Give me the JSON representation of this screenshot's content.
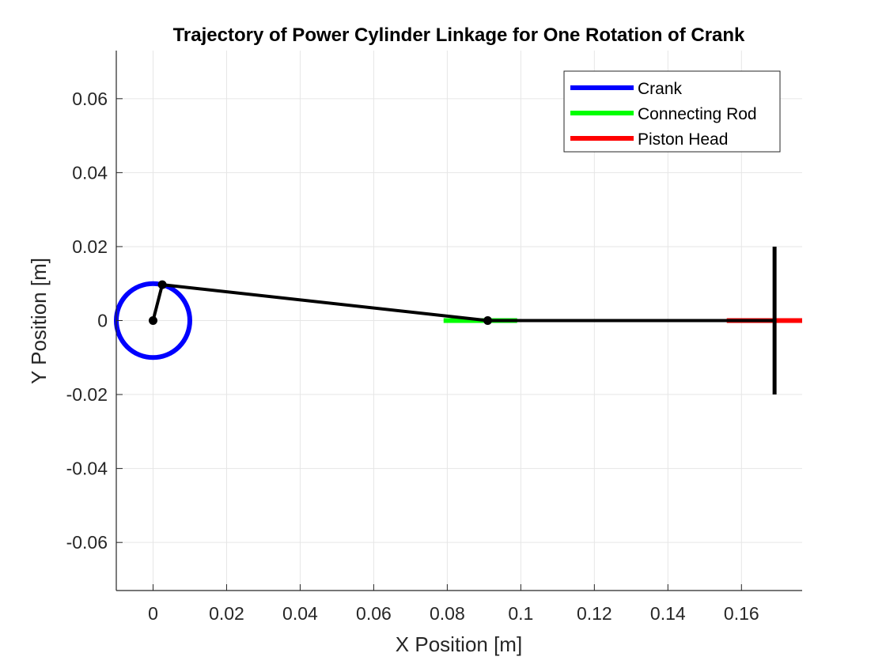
{
  "chart_data": {
    "type": "line",
    "title": "Trajectory of Power Cylinder Linkage for One Rotation of Crank",
    "xlabel": "X Position [m]",
    "ylabel": "Y Position [m]",
    "xlim": [
      -0.01,
      0.1765
    ],
    "ylim": [
      -0.073,
      0.073
    ],
    "xticks": [
      0,
      0.02,
      0.04,
      0.06,
      0.08,
      0.1,
      0.12,
      0.14,
      0.16
    ],
    "xtick_labels": [
      "0",
      "0.02",
      "0.04",
      "0.06",
      "0.08",
      "0.1",
      "0.12",
      "0.14",
      "0.16"
    ],
    "yticks": [
      -0.06,
      -0.04,
      -0.02,
      0,
      0.02,
      0.04,
      0.06
    ],
    "ytick_labels": [
      "-0.06",
      "-0.04",
      "-0.02",
      "0",
      "0.02",
      "0.04",
      "0.06"
    ],
    "grid": true,
    "legend_position": "top-right",
    "series": [
      {
        "name": "Crank",
        "color": "#0000ff",
        "kind": "circle",
        "center": [
          0,
          0
        ],
        "radius": 0.01
      },
      {
        "name": "Connecting Rod",
        "color": "#00ff00",
        "x": [
          0.079,
          0.099
        ],
        "y": [
          0,
          0
        ]
      },
      {
        "name": "Piston Head",
        "color": "#ff0000",
        "x": [
          0.156,
          0.1765
        ],
        "y": [
          0,
          0
        ]
      }
    ],
    "linkage": {
      "color": "#000000",
      "crank_pivot": [
        0,
        0
      ],
      "crank_pin": [
        0.0025,
        0.0097
      ],
      "wrist_pin": [
        0.091,
        0
      ],
      "piston_rod_end": [
        0.169,
        0
      ],
      "piston_face_x": 0.169,
      "piston_face_y": [
        -0.02,
        0.02
      ]
    }
  }
}
